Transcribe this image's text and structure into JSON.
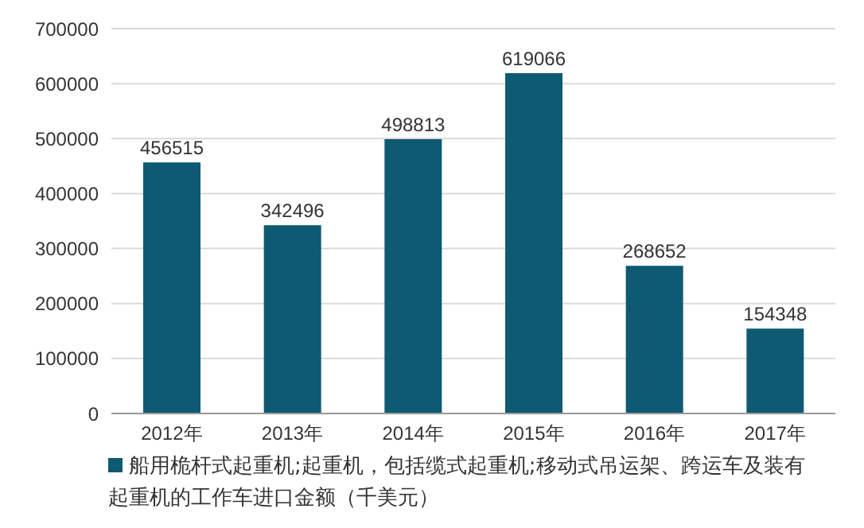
{
  "chart_data": {
    "type": "bar",
    "categories": [
      "2012年",
      "2013年",
      "2014年",
      "2015年",
      "2016年",
      "2017年"
    ],
    "series": [
      {
        "name": "船用桅杆式起重机;起重机，包括缆式起重机;移动式吊运架、跨运车及装有起重机的工作车进口金额（千美元）",
        "color": "#0e5a73",
        "values": [
          456515,
          342496,
          498813,
          619066,
          268652,
          154348
        ]
      }
    ],
    "ylim": [
      0,
      700000
    ],
    "yticks": [
      0,
      100000,
      200000,
      300000,
      400000,
      500000,
      600000,
      700000
    ],
    "grid": "y",
    "legend": "bottom",
    "data_labels": true
  }
}
